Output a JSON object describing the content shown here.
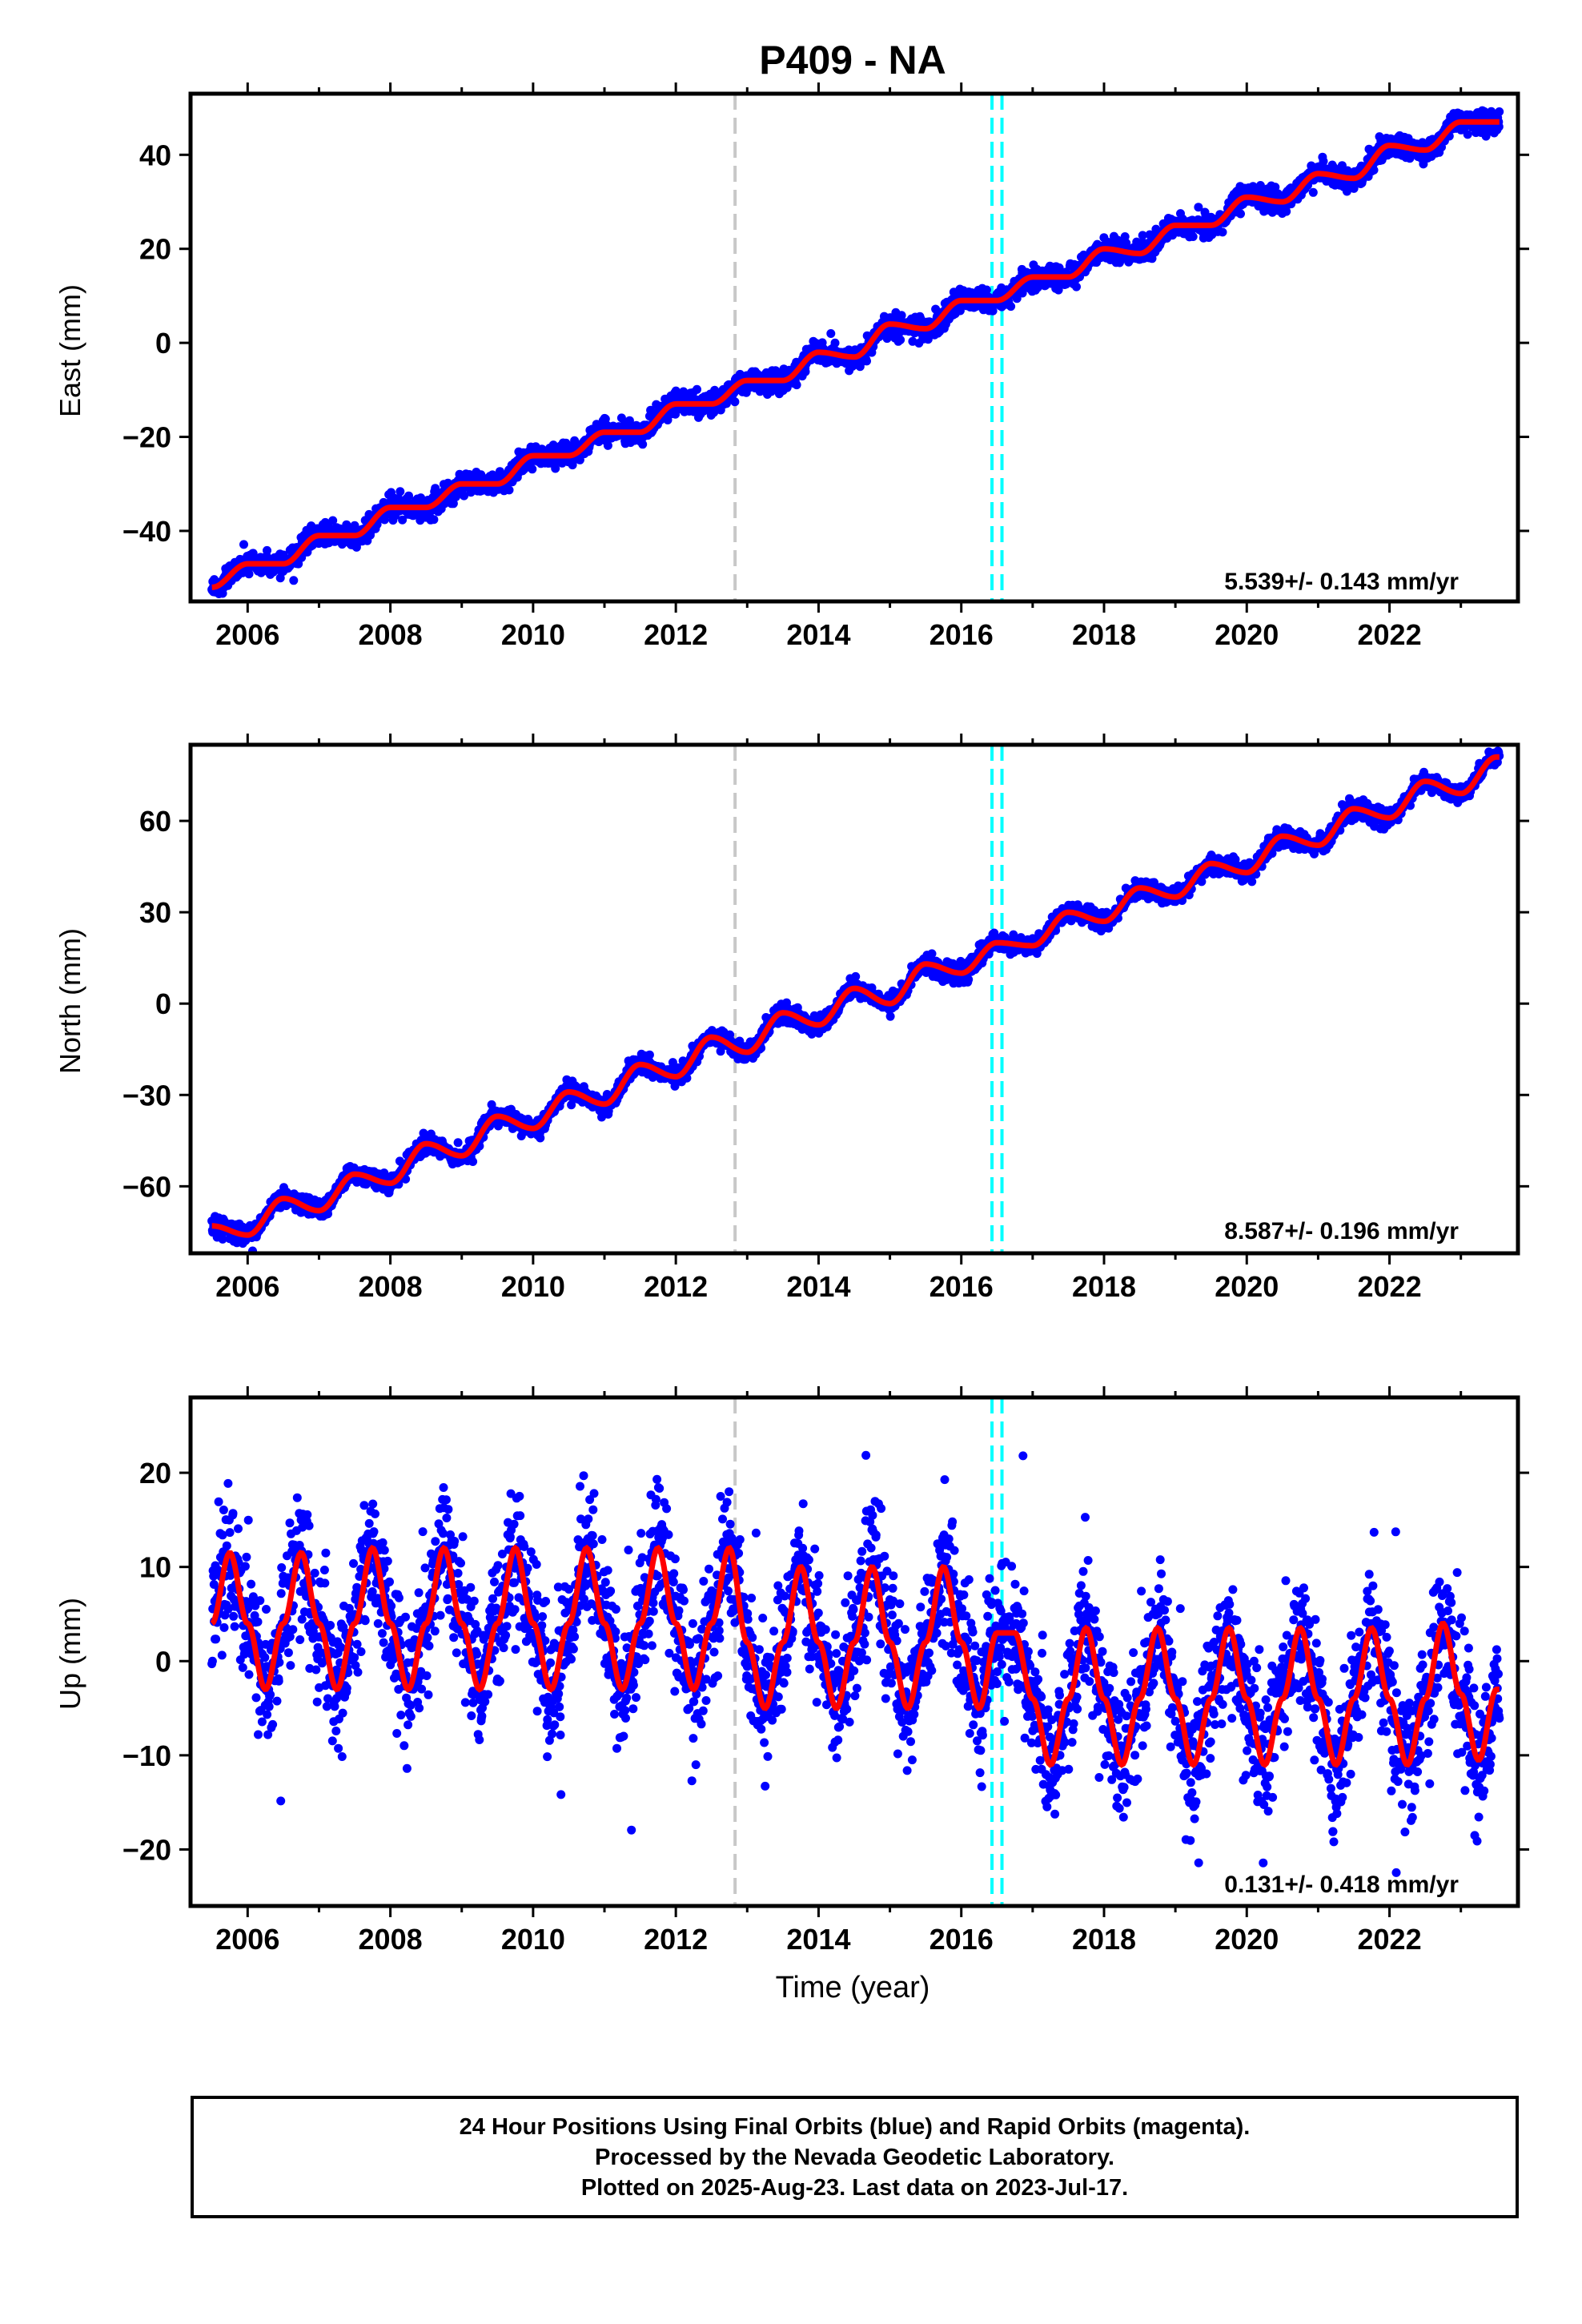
{
  "title": "P409 - NA",
  "xlabel": "Time (year)",
  "footer": {
    "line1": "24 Hour Positions Using Final Orbits (blue) and Rapid Orbits (magenta).",
    "line2": "Processed by the Nevada Geodetic Laboratory.",
    "line3": "Plotted on 2025-Aug-23. Last data on 2023-Jul-17."
  },
  "colors": {
    "final_orbits": "#0000ff",
    "model_fit": "#ff0000",
    "event_gray": "#c8c8c8",
    "event_cyan": "#00ffff",
    "frame": "#000000"
  },
  "chart_data": [
    {
      "type": "scatter",
      "component": "East",
      "ylabel": "East (mm)",
      "xlim": [
        2005.2,
        2023.8
      ],
      "ylim": [
        -55,
        53
      ],
      "x_ticks": [
        2006,
        2008,
        2010,
        2012,
        2014,
        2016,
        2018,
        2020,
        2022
      ],
      "y_ticks": [
        -40,
        -20,
        0,
        20,
        40
      ],
      "rate_label": "5.539+/- 0.143 mm/yr",
      "data_range": [
        2005.5,
        2023.54
      ],
      "series": [
        {
          "type": "model_line",
          "x": [
            2005.5,
            2006.0,
            2006.5,
            2007.0,
            2007.5,
            2008.0,
            2008.5,
            2009.0,
            2009.5,
            2010.0,
            2010.5,
            2011.0,
            2011.5,
            2012.0,
            2012.5,
            2013.0,
            2013.5,
            2014.0,
            2014.5,
            2015.0,
            2015.5,
            2016.0,
            2016.5,
            2017.0,
            2017.5,
            2018.0,
            2018.5,
            2019.0,
            2019.5,
            2020.0,
            2020.5,
            2021.0,
            2021.5,
            2022.0,
            2022.5,
            2023.0,
            2023.5
          ],
          "y": [
            -52,
            -47,
            -47,
            -41,
            -41,
            -35,
            -35,
            -30,
            -30,
            -24,
            -24,
            -19,
            -19,
            -13,
            -13,
            -8,
            -8,
            -2,
            -3,
            4,
            3,
            9,
            9,
            14,
            14,
            20,
            19,
            25,
            25,
            31,
            30,
            36,
            35,
            42,
            41,
            47,
            47
          ]
        }
      ],
      "event_lines": [
        {
          "x": 2012.83,
          "color": "#c8c8c8"
        },
        {
          "x": 2016.43,
          "color": "#00ffff"
        },
        {
          "x": 2016.57,
          "color": "#00ffff"
        }
      ]
    },
    {
      "type": "scatter",
      "component": "North",
      "ylabel": "North (mm)",
      "xlim": [
        2005.2,
        2023.8
      ],
      "ylim": [
        -82,
        85
      ],
      "x_ticks": [
        2006,
        2008,
        2010,
        2012,
        2014,
        2016,
        2018,
        2020,
        2022
      ],
      "y_ticks": [
        -60,
        -30,
        0,
        30,
        60
      ],
      "rate_label": "8.587+/- 0.196 mm/yr",
      "data_range": [
        2005.5,
        2023.54
      ],
      "series": [
        {
          "type": "model_line",
          "x": [
            2005.5,
            2006.0,
            2006.5,
            2007.0,
            2007.5,
            2008.0,
            2008.5,
            2009.0,
            2009.5,
            2010.0,
            2010.5,
            2011.0,
            2011.5,
            2012.0,
            2012.5,
            2013.0,
            2013.5,
            2014.0,
            2014.5,
            2015.0,
            2015.5,
            2016.0,
            2016.5,
            2017.0,
            2017.5,
            2018.0,
            2018.5,
            2019.0,
            2019.5,
            2020.0,
            2020.5,
            2021.0,
            2021.5,
            2022.0,
            2022.5,
            2023.0,
            2023.5
          ],
          "y": [
            -73,
            -76,
            -64,
            -68,
            -56,
            -59,
            -46,
            -50,
            -37,
            -41,
            -29,
            -33,
            -20,
            -24,
            -11,
            -16,
            -3,
            -7,
            5,
            0,
            13,
            10,
            20,
            19,
            30,
            27,
            38,
            35,
            46,
            43,
            55,
            52,
            64,
            61,
            73,
            69,
            81
          ]
        }
      ],
      "event_lines": [
        {
          "x": 2012.83,
          "color": "#c8c8c8"
        },
        {
          "x": 2016.43,
          "color": "#00ffff"
        },
        {
          "x": 2016.57,
          "color": "#00ffff"
        }
      ]
    },
    {
      "type": "scatter",
      "component": "Up",
      "ylabel": "Up (mm)",
      "xlim": [
        2005.2,
        2023.8
      ],
      "ylim": [
        -26,
        28
      ],
      "x_ticks": [
        2006,
        2008,
        2010,
        2012,
        2014,
        2016,
        2018,
        2020,
        2022
      ],
      "y_ticks": [
        -20,
        -10,
        0,
        10,
        20
      ],
      "rate_label": "0.131+/- 0.418 mm/yr",
      "data_range": [
        2005.5,
        2023.54
      ],
      "series": [
        {
          "type": "model_line",
          "x": [
            2005.5,
            2005.75,
            2006.0,
            2006.25,
            2006.5,
            2006.75,
            2007.0,
            2007.25,
            2007.5,
            2007.75,
            2008.0,
            2008.25,
            2008.5,
            2008.75,
            2009.0,
            2009.25,
            2009.5,
            2009.75,
            2010.0,
            2010.25,
            2010.5,
            2010.75,
            2011.0,
            2011.25,
            2011.5,
            2011.75,
            2012.0,
            2012.25,
            2012.5,
            2012.75,
            2013.0,
            2013.25,
            2013.5,
            2013.75,
            2014.0,
            2014.25,
            2014.5,
            2014.75,
            2015.0,
            2015.25,
            2015.5,
            2015.75,
            2016.0,
            2016.25,
            2016.5,
            2016.75,
            2017.0,
            2017.25,
            2017.5,
            2017.75,
            2018.0,
            2018.25,
            2018.5,
            2018.75,
            2019.0,
            2019.25,
            2019.5,
            2019.75,
            2020.0,
            2020.25,
            2020.5,
            2020.75,
            2021.0,
            2021.25,
            2021.5,
            2021.75,
            2022.0,
            2022.25,
            2022.5,
            2022.75,
            2023.0,
            2023.25,
            2023.5
          ],
          "y": [
            4,
            11.5,
            4,
            -3,
            4,
            11.5,
            4,
            -3,
            4,
            12,
            4,
            -3,
            4,
            12,
            4,
            -3,
            4,
            12,
            4,
            -3,
            4,
            12,
            4,
            -3,
            4,
            12,
            4,
            -3,
            4,
            12,
            2,
            -5,
            2,
            10,
            2,
            -5,
            2,
            10,
            2,
            -5,
            2,
            10,
            2,
            -5,
            3,
            3,
            -4,
            -11,
            -4,
            3.5,
            -4,
            -11,
            -4,
            3.5,
            -4,
            -11,
            -4,
            3.5,
            -4,
            -11,
            -4,
            3.5,
            -4,
            -11,
            -4,
            3.5,
            -4,
            -11,
            -4,
            4,
            -3.5,
            -10.5,
            -3
          ]
        }
      ],
      "event_lines": [
        {
          "x": 2012.83,
          "color": "#c8c8c8"
        },
        {
          "x": 2016.43,
          "color": "#00ffff"
        },
        {
          "x": 2016.57,
          "color": "#00ffff"
        }
      ]
    }
  ]
}
